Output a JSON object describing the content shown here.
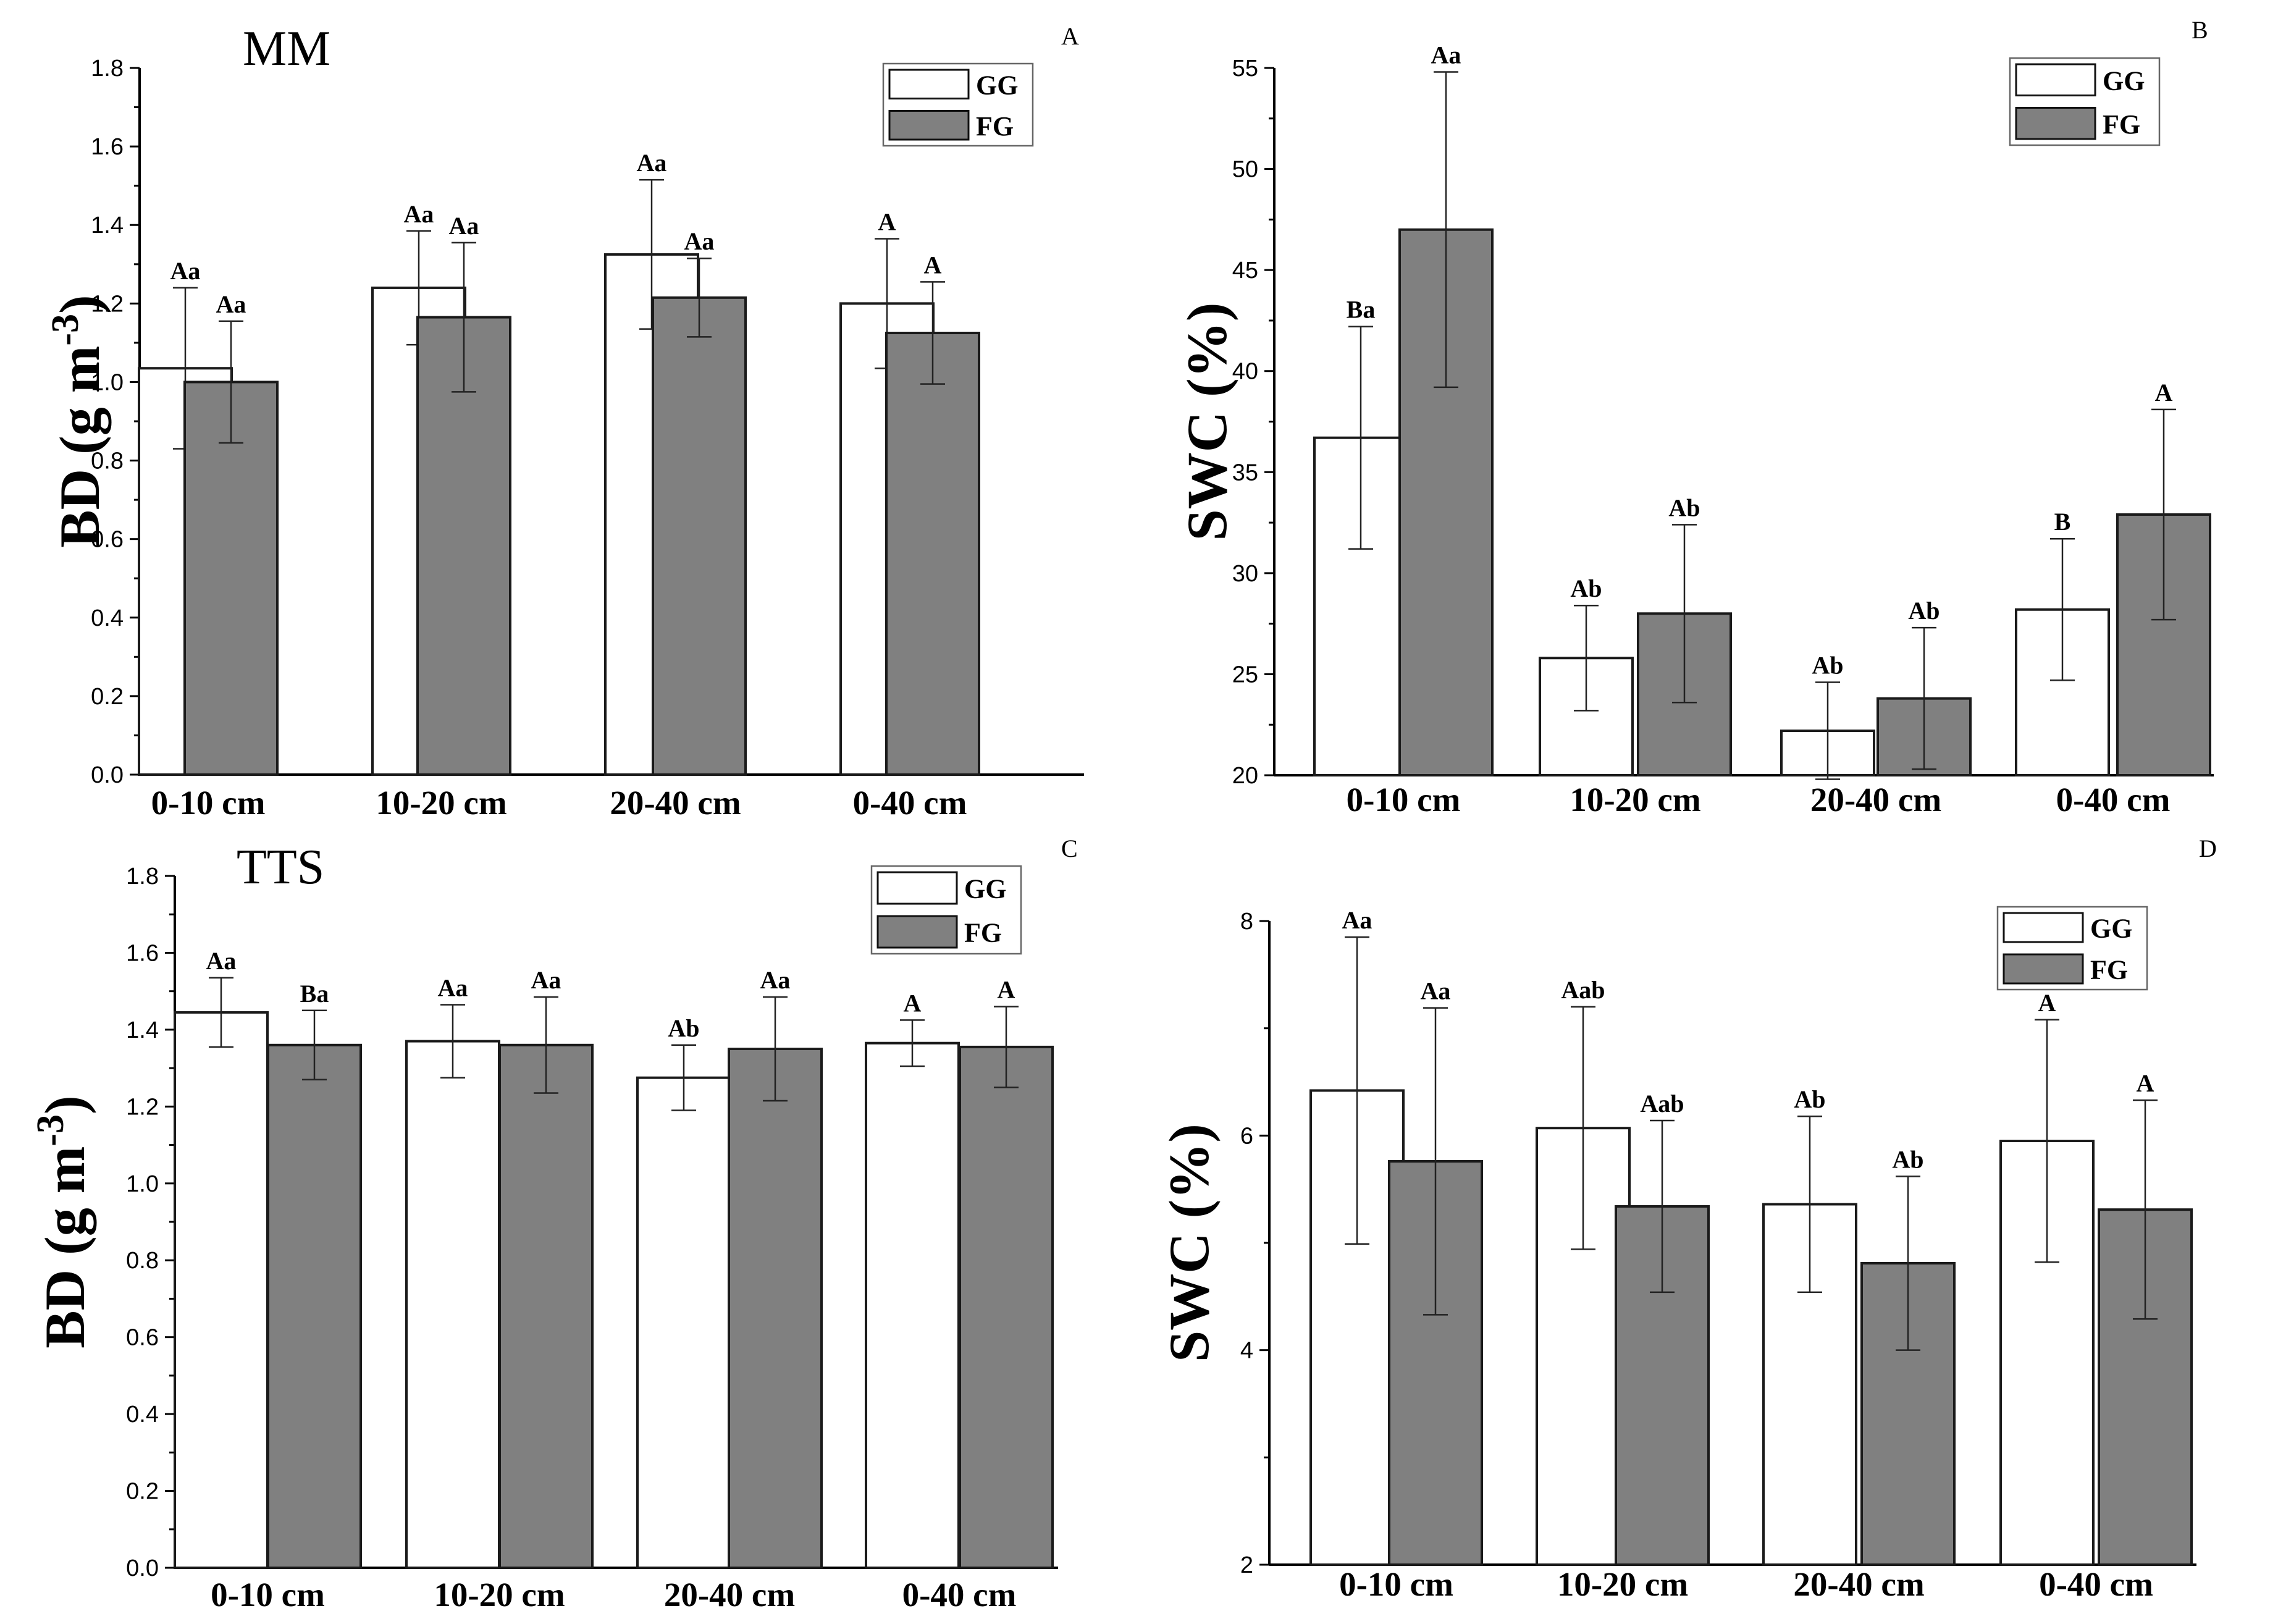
{
  "colors": {
    "gg": "#ffffff",
    "fg": "#808080",
    "axis": "#000000",
    "bar_edge": "#1a1a1a"
  },
  "chart_data": [
    {
      "id": "A",
      "type": "bar",
      "panel_label": "A",
      "title": "MM",
      "ylabel": "BD (g m",
      "ylabel_sup": "-3",
      "ylabel_close": ")",
      "ylim": [
        0,
        1.8
      ],
      "yticks": [
        "0.0",
        "0.2",
        "0.4",
        "0.6",
        "0.8",
        "1.0",
        "1.2",
        "1.4",
        "1.6",
        "1.8"
      ],
      "categories": [
        "0-10 cm",
        "10-20 cm",
        "20-40 cm",
        "0-40 cm"
      ],
      "series": [
        {
          "name": "GG",
          "values": [
            1.035,
            1.24,
            1.325,
            1.2
          ],
          "errors": [
            0.205,
            0.145,
            0.19,
            0.165
          ],
          "labels": [
            "Aa",
            "Aa",
            "Aa",
            "A"
          ]
        },
        {
          "name": "FG",
          "values": [
            1.0,
            1.165,
            1.215,
            1.125
          ],
          "errors": [
            0.155,
            0.19,
            0.1,
            0.13
          ],
          "labels": [
            "Aa",
            "Aa",
            "Aa",
            "A"
          ]
        }
      ]
    },
    {
      "id": "B",
      "type": "bar",
      "panel_label": "B",
      "title": "",
      "ylabel": "SWC (%)",
      "ylabel_sup": "",
      "ylabel_close": "",
      "ylim": [
        20,
        55
      ],
      "yticks": [
        "20",
        "25",
        "30",
        "35",
        "40",
        "45",
        "50",
        "55"
      ],
      "categories": [
        "0-10 cm",
        "10-20 cm",
        "20-40 cm",
        "0-40 cm"
      ],
      "series": [
        {
          "name": "GG",
          "values": [
            36.7,
            25.8,
            22.2,
            28.2
          ],
          "errors": [
            5.5,
            2.6,
            2.4,
            3.5
          ],
          "labels": [
            "Ba",
            "Ab",
            "Ab",
            "B"
          ]
        },
        {
          "name": "FG",
          "values": [
            47.0,
            28.0,
            23.8,
            32.9
          ],
          "errors": [
            7.8,
            4.4,
            3.5,
            5.2
          ],
          "labels": [
            "Aa",
            "Ab",
            "Ab",
            "A"
          ]
        }
      ]
    },
    {
      "id": "C",
      "type": "bar",
      "panel_label": "C",
      "title": "TTS",
      "ylabel": "BD (g m",
      "ylabel_sup": "-3",
      "ylabel_close": ")",
      "ylim": [
        0,
        1.8
      ],
      "yticks": [
        "0.0",
        "0.2",
        "0.4",
        "0.6",
        "0.8",
        "1.0",
        "1.2",
        "1.4",
        "1.6",
        "1.8"
      ],
      "categories": [
        "0-10 cm",
        "10-20 cm",
        "20-40 cm",
        "0-40 cm"
      ],
      "series": [
        {
          "name": "GG",
          "values": [
            1.445,
            1.37,
            1.275,
            1.365
          ],
          "errors": [
            0.09,
            0.095,
            0.085,
            0.06
          ],
          "labels": [
            "Aa",
            "Aa",
            "Ab",
            "A"
          ]
        },
        {
          "name": "FG",
          "values": [
            1.36,
            1.36,
            1.35,
            1.355
          ],
          "errors": [
            0.09,
            0.125,
            0.135,
            0.105
          ],
          "labels": [
            "Ba",
            "Aa",
            "Aa",
            "A"
          ]
        }
      ]
    },
    {
      "id": "D",
      "type": "bar",
      "panel_label": "D",
      "title": "",
      "ylabel": "SWC (%)",
      "ylabel_sup": "",
      "ylabel_close": "",
      "ylim": [
        2,
        8
      ],
      "yticks": [
        "2",
        "4",
        "6",
        "8"
      ],
      "categories": [
        "0-10 cm",
        "10-20 cm",
        "20-40 cm",
        "0-40 cm"
      ],
      "series": [
        {
          "name": "GG",
          "values": [
            6.42,
            6.07,
            5.36,
            5.95
          ],
          "errors": [
            1.43,
            1.13,
            0.82,
            1.13
          ],
          "labels": [
            "Aa",
            "Aab",
            "Ab",
            "A"
          ]
        },
        {
          "name": "FG",
          "values": [
            5.76,
            5.34,
            4.81,
            5.31
          ],
          "errors": [
            1.43,
            0.8,
            0.81,
            1.02
          ],
          "labels": [
            "Aa",
            "Aab",
            "Ab",
            "A"
          ]
        }
      ]
    }
  ]
}
